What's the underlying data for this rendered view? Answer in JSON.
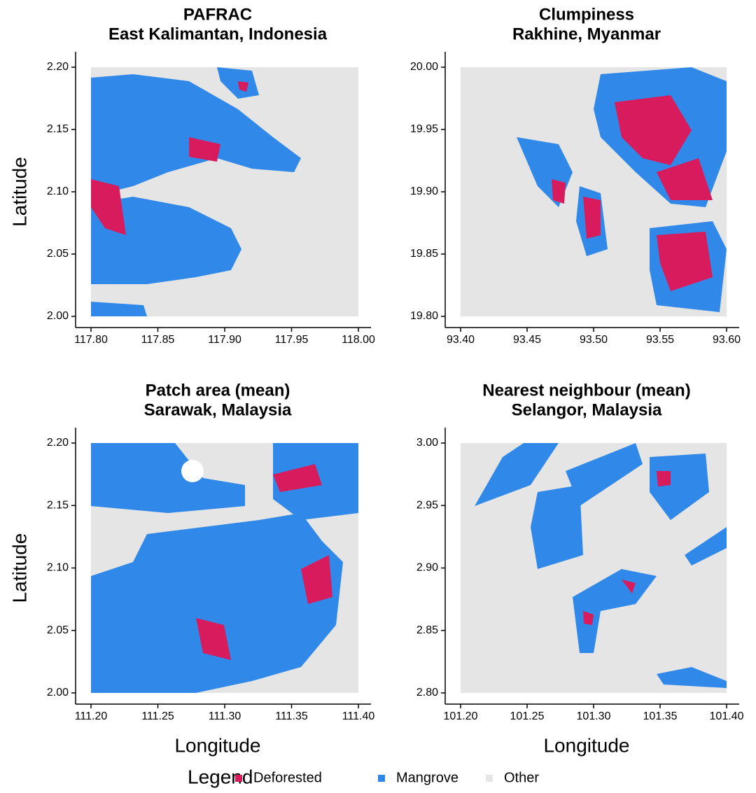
{
  "panels": [
    {
      "title": [
        "PAFRAC",
        "East Kalimantan, Indonesia"
      ],
      "xlim": [
        117.8,
        118.0
      ],
      "ylim": [
        2.0,
        2.2
      ],
      "xticks": [
        {
          "value": 117.8,
          "label": "117.80"
        },
        {
          "value": 117.85,
          "label": "117.85"
        },
        {
          "value": 117.9,
          "label": "117.90"
        },
        {
          "value": 117.95,
          "label": "117.95"
        },
        {
          "value": 118.0,
          "label": "118.00"
        }
      ],
      "yticks": [
        {
          "value": 2.0,
          "label": "2.00"
        },
        {
          "value": 2.05,
          "label": "2.05"
        },
        {
          "value": 2.1,
          "label": "2.10"
        },
        {
          "value": 2.15,
          "label": "2.15"
        },
        {
          "value": 2.2,
          "label": "2.20"
        }
      ]
    },
    {
      "title": [
        "Clumpiness",
        "Rakhine, Myanmar"
      ],
      "xlim": [
        93.4,
        93.6
      ],
      "ylim": [
        19.8,
        20.0
      ],
      "xticks": [
        {
          "value": 93.4,
          "label": "93.40"
        },
        {
          "value": 93.45,
          "label": "93.45"
        },
        {
          "value": 93.5,
          "label": "93.50"
        },
        {
          "value": 93.55,
          "label": "93.55"
        },
        {
          "value": 93.6,
          "label": "93.60"
        }
      ],
      "yticks": [
        {
          "value": 19.8,
          "label": "19.80"
        },
        {
          "value": 19.85,
          "label": "19.85"
        },
        {
          "value": 19.9,
          "label": "19.90"
        },
        {
          "value": 19.95,
          "label": "19.95"
        },
        {
          "value": 20.0,
          "label": "20.00"
        }
      ]
    },
    {
      "title": [
        "Patch area (mean)",
        "Sarawak, Malaysia"
      ],
      "xlim": [
        111.2,
        111.4
      ],
      "ylim": [
        2.0,
        2.2
      ],
      "xticks": [
        {
          "value": 111.2,
          "label": "111.20"
        },
        {
          "value": 111.25,
          "label": "111.25"
        },
        {
          "value": 111.3,
          "label": "111.30"
        },
        {
          "value": 111.35,
          "label": "111.35"
        },
        {
          "value": 111.4,
          "label": "111.40"
        }
      ],
      "yticks": [
        {
          "value": 2.0,
          "label": "2.00"
        },
        {
          "value": 2.05,
          "label": "2.05"
        },
        {
          "value": 2.1,
          "label": "2.10"
        },
        {
          "value": 2.15,
          "label": "2.15"
        },
        {
          "value": 2.2,
          "label": "2.20"
        }
      ]
    },
    {
      "title": [
        "Nearest neighbour (mean)",
        "Selangor, Malaysia"
      ],
      "xlim": [
        101.2,
        101.4
      ],
      "ylim": [
        2.8,
        3.0
      ],
      "xticks": [
        {
          "value": 101.2,
          "label": "101.20"
        },
        {
          "value": 101.25,
          "label": "101.25"
        },
        {
          "value": 101.3,
          "label": "101.30"
        },
        {
          "value": 101.35,
          "label": "101.35"
        },
        {
          "value": 101.4,
          "label": "101.40"
        }
      ],
      "yticks": [
        {
          "value": 2.8,
          "label": "2.80"
        },
        {
          "value": 2.85,
          "label": "2.85"
        },
        {
          "value": 2.9,
          "label": "2.90"
        },
        {
          "value": 2.95,
          "label": "2.95"
        },
        {
          "value": 3.0,
          "label": "3.00"
        }
      ]
    }
  ],
  "x_label": "Longitude",
  "y_label": "Latitude",
  "legend": {
    "title": "Legend",
    "items": [
      {
        "label": "Deforested",
        "color": "#d81b5c"
      },
      {
        "label": "Mangrove",
        "color": "#3089e8"
      },
      {
        "label": "Other",
        "color": "#e5e5e5"
      }
    ]
  }
}
